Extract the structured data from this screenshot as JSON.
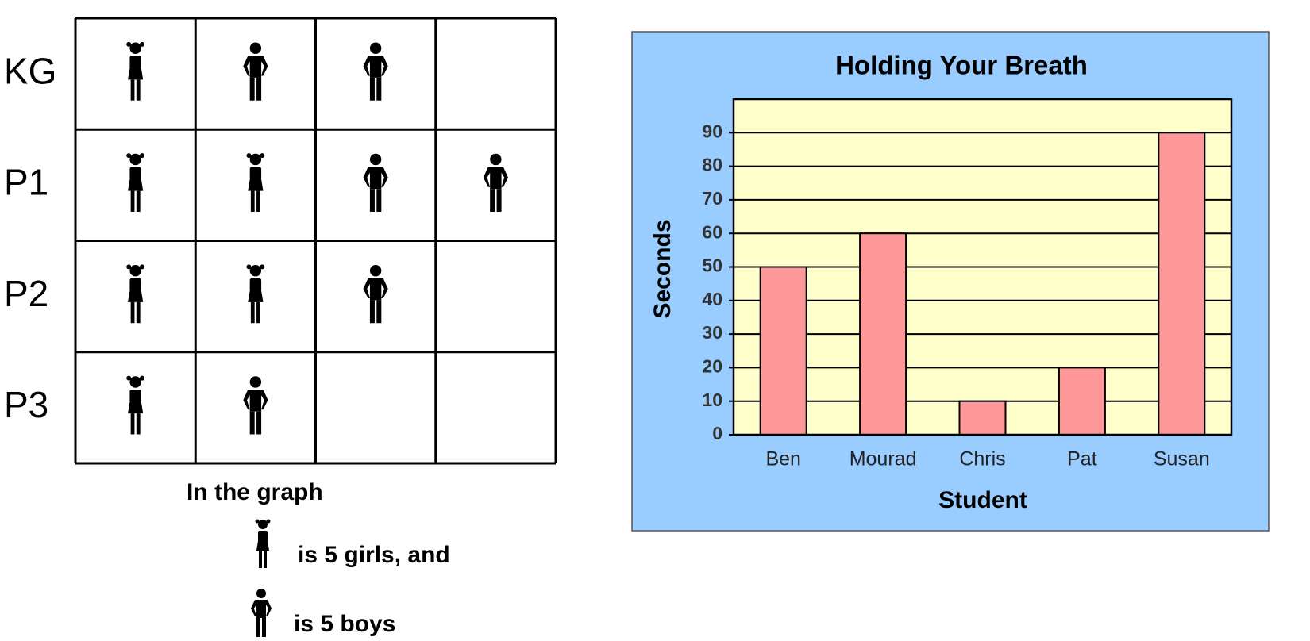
{
  "chart_data": [
    {
      "type": "pictograph",
      "categories": [
        "KG",
        "P1",
        "P2",
        "P3"
      ],
      "series": [
        {
          "color": "#000000",
          "values": [
            1,
            2,
            2,
            1
          ]
        },
        {
          "color": "#000000",
          "values": [
            2,
            2,
            1,
            1
          ]
        }
      ],
      "key_title": "In the graph",
      "key": [
        "is 5 girls, and",
        "is 5 boys"
      ]
    },
    {
      "type": "bar",
      "title": "Holding Your Breath",
      "x_label": "Student",
      "y_label": "Seconds",
      "categories": [
        "Ben",
        "Mourad",
        "Chris",
        "Pat",
        "Susan"
      ],
      "values": [
        50,
        60,
        10,
        20,
        90
      ],
      "color": "#ff9999",
      "ylim": [
        0,
        100
      ],
      "yticks": [
        0,
        10,
        20,
        30,
        40,
        50,
        60,
        70,
        80,
        90
      ],
      "grid": true
    }
  ]
}
